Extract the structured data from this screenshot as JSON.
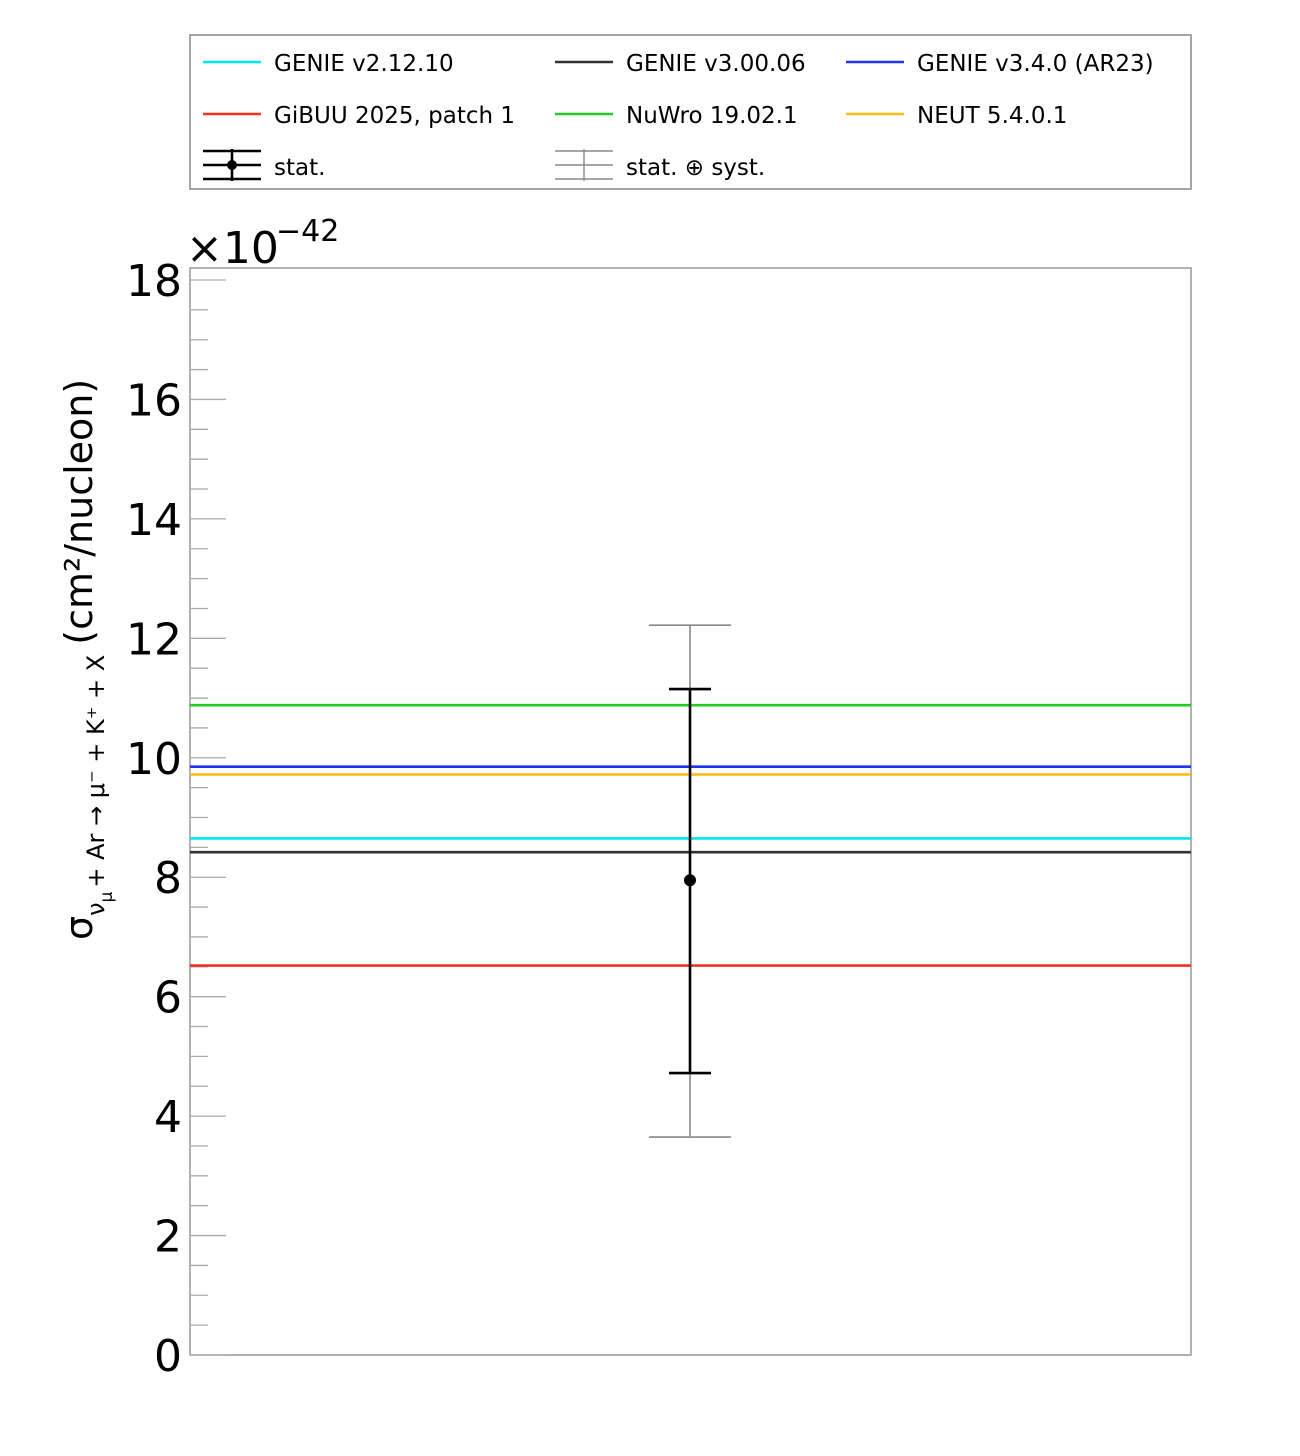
{
  "chart_data": {
    "type": "line",
    "title": "",
    "xlabel": "",
    "ylabel": "(cm²/nucleon)",
    "ylabel_parts": {
      "sigma": "σ",
      "subscript_nu": "ν",
      "subscript_mu": "μ",
      "subscript_process": "+ Ar → μ⁻ + K⁺ + X",
      "unit": "(cm²/nucleon)"
    },
    "y_multiplier_base": "×10",
    "y_multiplier_exp": "−42",
    "ylim": [
      0,
      18
    ],
    "y_ticks": [
      {
        "value": 0,
        "label": "0"
      },
      {
        "value": 2,
        "label": "2"
      },
      {
        "value": 4,
        "label": "4"
      },
      {
        "value": 6,
        "label": "6"
      },
      {
        "value": 8,
        "label": "8"
      },
      {
        "value": 10,
        "label": "10"
      },
      {
        "value": 12,
        "label": "12"
      },
      {
        "value": 14,
        "label": "14"
      },
      {
        "value": 16,
        "label": "16"
      },
      {
        "value": 18,
        "label": "18"
      }
    ],
    "y_minor_step": 0.5,
    "grid": false,
    "legend_position": "top",
    "series": [
      {
        "name": "GENIE v2.12.10",
        "value": 8.65,
        "color": "#00e5ee"
      },
      {
        "name": "GENIE v3.00.06",
        "value": 8.42,
        "color": "#333333"
      },
      {
        "name": "GENIE v3.4.0 (AR23)",
        "value": 9.85,
        "color": "#2233ee"
      },
      {
        "name": "GiBUU 2025, patch 1",
        "value": 6.52,
        "color": "#ee3322"
      },
      {
        "name": "NuWro 19.02.1",
        "value": 10.88,
        "color": "#22cc22"
      },
      {
        "name": "NEUT 5.4.0.1",
        "value": 9.72,
        "color": "#ffbb11"
      }
    ],
    "measurement": {
      "value": 7.95,
      "stat_low": 4.72,
      "stat_high": 11.15,
      "total_low": 3.65,
      "total_high": 12.22
    },
    "legend_extra": [
      {
        "name": "stat.",
        "style": "stat"
      },
      {
        "name": "stat. ⊕ syst.",
        "style": "total"
      }
    ]
  }
}
